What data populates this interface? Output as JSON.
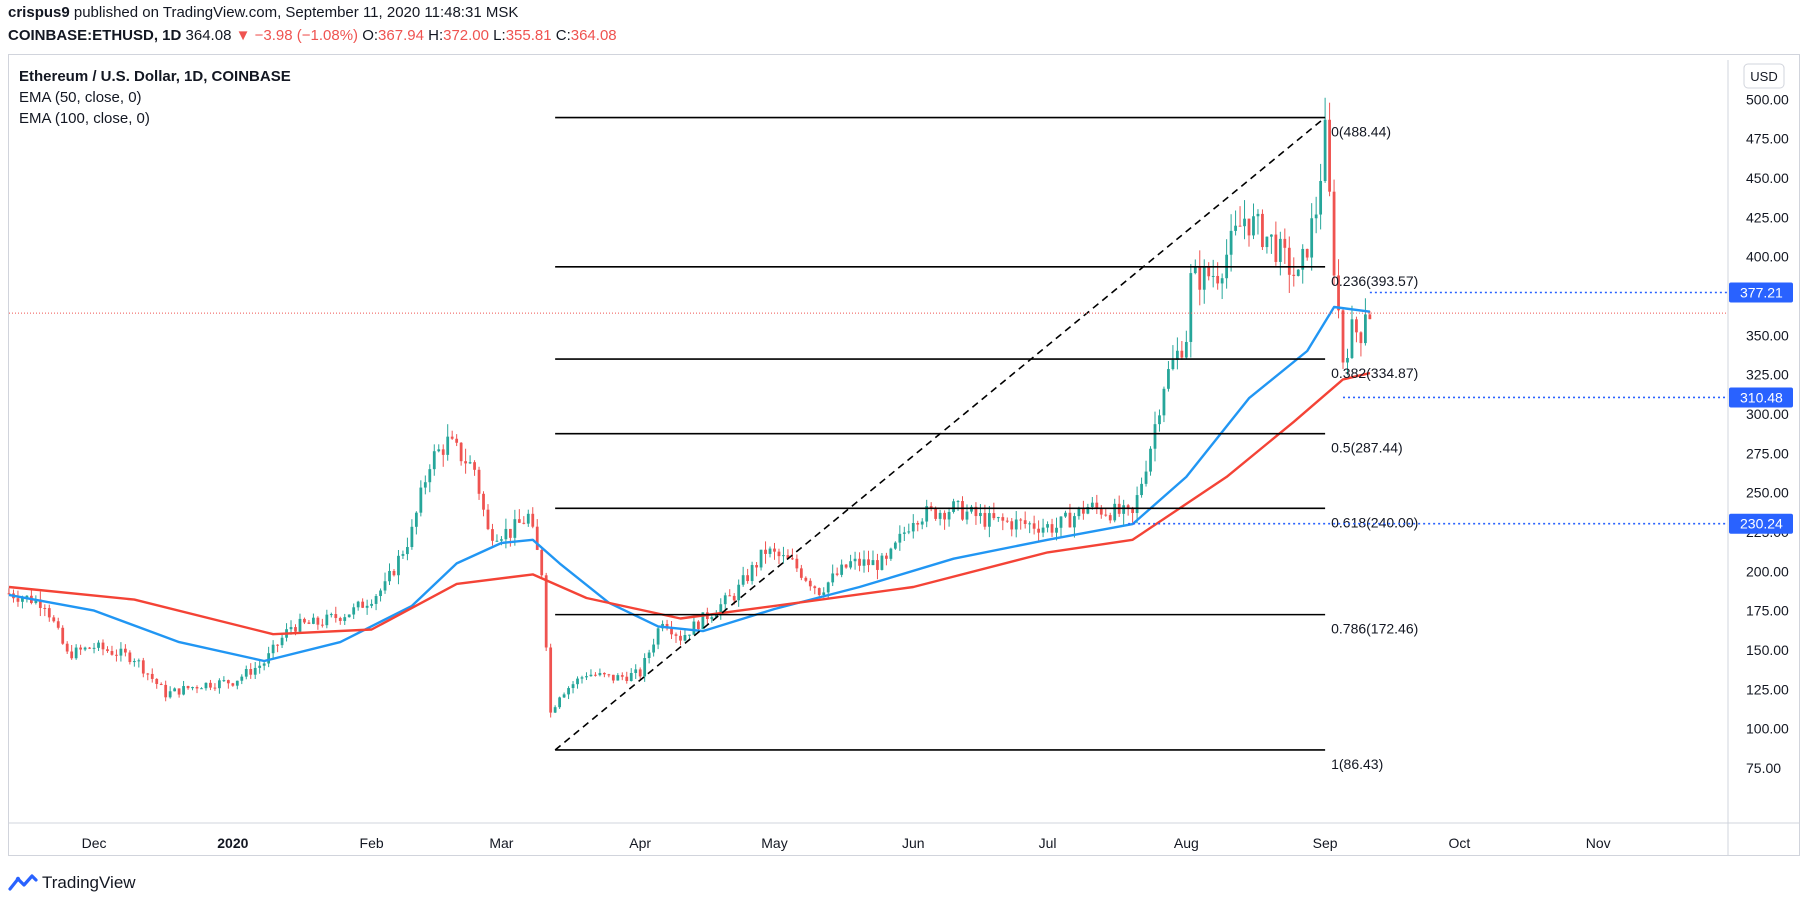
{
  "header": {
    "user": "crispus9",
    "published": "published on TradingView.com, September 11, 2020 11:48:31 MSK",
    "symbol": "COINBASE:ETHUSD, 1D",
    "last": "364.08",
    "change": "−3.98 (−1.08%)",
    "o_label": "O:",
    "o": "367.94",
    "h_label": "H:",
    "h": "372.00",
    "l_label": "L:",
    "l": "355.81",
    "c_label": "C:",
    "c": "364.08"
  },
  "legend": [
    "Ethereum / U.S. Dollar, 1D, COINBASE",
    "EMA (50, close, 0)",
    "EMA (100, close, 0)"
  ],
  "currency_button": "USD",
  "brand": "TradingView",
  "colors": {
    "up": "#26a69a",
    "down": "#ef5350",
    "ema50": "#2196f3",
    "ema100": "#f44336",
    "fib": "#000000",
    "price_line": "#ef5350",
    "badge_blue": "#2962ff",
    "axis_text": "#131722"
  },
  "chart_data": {
    "type": "candlestick",
    "symbol": "ETHUSD",
    "interval": "1D",
    "x_labels": [
      {
        "label": "Dec",
        "date": "2019-12-01"
      },
      {
        "label": "2020",
        "date": "2020-01-01",
        "bold": true
      },
      {
        "label": "Feb",
        "date": "2020-02-01"
      },
      {
        "label": "Mar",
        "date": "2020-03-01"
      },
      {
        "label": "Apr",
        "date": "2020-04-01"
      },
      {
        "label": "May",
        "date": "2020-05-01"
      },
      {
        "label": "Jun",
        "date": "2020-06-01"
      },
      {
        "label": "Jul",
        "date": "2020-07-01"
      },
      {
        "label": "Aug",
        "date": "2020-08-01"
      },
      {
        "label": "Sep",
        "date": "2020-09-01"
      },
      {
        "label": "Oct",
        "date": "2020-10-01"
      },
      {
        "label": "Nov",
        "date": "2020-11-01"
      }
    ],
    "x_range": [
      "2019-11-12",
      "2020-11-30"
    ],
    "y_range": [
      40,
      525
    ],
    "y_ticks": [
      75,
      100,
      125,
      150,
      175,
      200,
      225,
      250,
      275,
      300,
      325,
      350,
      375,
      400,
      425,
      450,
      475,
      500
    ],
    "close_series": [
      [
        "2019-11-12",
        186
      ],
      [
        "2019-11-20",
        180
      ],
      [
        "2019-11-25",
        147
      ],
      [
        "2019-12-01",
        152
      ],
      [
        "2019-12-10",
        145
      ],
      [
        "2019-12-17",
        122
      ],
      [
        "2019-12-25",
        128
      ],
      [
        "2020-01-01",
        130
      ],
      [
        "2020-01-08",
        142
      ],
      [
        "2020-01-14",
        165
      ],
      [
        "2020-01-20",
        167
      ],
      [
        "2020-01-28",
        175
      ],
      [
        "2020-02-04",
        190
      ],
      [
        "2020-02-10",
        225
      ],
      [
        "2020-02-14",
        270
      ],
      [
        "2020-02-18",
        282
      ],
      [
        "2020-02-24",
        265
      ],
      [
        "2020-02-27",
        225
      ],
      [
        "2020-03-03",
        225
      ],
      [
        "2020-03-07",
        235
      ],
      [
        "2020-03-10",
        200
      ],
      [
        "2020-03-12",
        110
      ],
      [
        "2020-03-14",
        122
      ],
      [
        "2020-03-20",
        135
      ],
      [
        "2020-03-26",
        132
      ],
      [
        "2020-04-01",
        135
      ],
      [
        "2020-04-06",
        170
      ],
      [
        "2020-04-10",
        158
      ],
      [
        "2020-04-16",
        172
      ],
      [
        "2020-04-22",
        185
      ],
      [
        "2020-04-29",
        213
      ],
      [
        "2020-05-05",
        205
      ],
      [
        "2020-05-11",
        188
      ],
      [
        "2020-05-18",
        205
      ],
      [
        "2020-05-26",
        205
      ],
      [
        "2020-06-01",
        235
      ],
      [
        "2020-06-10",
        240
      ],
      [
        "2020-06-18",
        232
      ],
      [
        "2020-06-26",
        230
      ],
      [
        "2020-07-03",
        228
      ],
      [
        "2020-07-10",
        241
      ],
      [
        "2020-07-20",
        235
      ],
      [
        "2020-07-24",
        280
      ],
      [
        "2020-07-27",
        320
      ],
      [
        "2020-08-01",
        350
      ],
      [
        "2020-08-02",
        385
      ],
      [
        "2020-08-08",
        390
      ],
      [
        "2020-08-14",
        425
      ],
      [
        "2020-08-20",
        410
      ],
      [
        "2020-08-26",
        385
      ],
      [
        "2020-08-30",
        430
      ],
      [
        "2020-09-01",
        477
      ],
      [
        "2020-09-03",
        395
      ],
      [
        "2020-09-05",
        335
      ],
      [
        "2020-09-07",
        353
      ],
      [
        "2020-09-09",
        352
      ],
      [
        "2020-09-10",
        368
      ],
      [
        "2020-09-11",
        364
      ]
    ],
    "ema50": [
      [
        "2019-11-12",
        185
      ],
      [
        "2019-12-01",
        175
      ],
      [
        "2019-12-20",
        155
      ],
      [
        "2020-01-08",
        143
      ],
      [
        "2020-01-25",
        155
      ],
      [
        "2020-02-10",
        178
      ],
      [
        "2020-02-20",
        205
      ],
      [
        "2020-03-01",
        218
      ],
      [
        "2020-03-08",
        220
      ],
      [
        "2020-03-14",
        205
      ],
      [
        "2020-03-25",
        180
      ],
      [
        "2020-04-05",
        165
      ],
      [
        "2020-04-15",
        162
      ],
      [
        "2020-05-01",
        176
      ],
      [
        "2020-05-20",
        190
      ],
      [
        "2020-06-10",
        208
      ],
      [
        "2020-07-01",
        220
      ],
      [
        "2020-07-20",
        230
      ],
      [
        "2020-08-01",
        260
      ],
      [
        "2020-08-15",
        310
      ],
      [
        "2020-08-28",
        340
      ],
      [
        "2020-09-03",
        368
      ],
      [
        "2020-09-11",
        365
      ]
    ],
    "ema100": [
      [
        "2019-11-12",
        190
      ],
      [
        "2019-12-10",
        182
      ],
      [
        "2020-01-10",
        160
      ],
      [
        "2020-02-01",
        163
      ],
      [
        "2020-02-20",
        192
      ],
      [
        "2020-03-08",
        198
      ],
      [
        "2020-03-20",
        183
      ],
      [
        "2020-04-10",
        170
      ],
      [
        "2020-05-01",
        178
      ],
      [
        "2020-06-01",
        190
      ],
      [
        "2020-07-01",
        212
      ],
      [
        "2020-07-20",
        220
      ],
      [
        "2020-08-10",
        260
      ],
      [
        "2020-08-25",
        295
      ],
      [
        "2020-09-05",
        322
      ],
      [
        "2020-09-11",
        326
      ]
    ],
    "fibonacci": {
      "x_start": "2020-03-13",
      "x_end": "2020-09-01",
      "levels": [
        {
          "ratio": 0,
          "price": 488.44,
          "label": "0(488.44)"
        },
        {
          "ratio": 0.236,
          "price": 393.57,
          "label": "0.236(393.57)"
        },
        {
          "ratio": 0.382,
          "price": 334.87,
          "label": "0.382(334.87)"
        },
        {
          "ratio": 0.5,
          "price": 287.44,
          "label": "0.5(287.44)"
        },
        {
          "ratio": 0.618,
          "price": 240.0,
          "label": "0.618(240.00)"
        },
        {
          "ratio": 0.786,
          "price": 172.46,
          "label": "0.786(172.46)"
        },
        {
          "ratio": 1,
          "price": 86.43,
          "label": "1(86.43)"
        }
      ],
      "trend_line": [
        [
          "2020-03-13",
          86.43
        ],
        [
          "2020-09-01",
          488.44
        ]
      ]
    },
    "horizontal_markers": [
      {
        "price": 377.21,
        "label": "377.21",
        "from": "2020-09-11"
      },
      {
        "price": 310.48,
        "label": "310.48",
        "from": "2020-09-05"
      },
      {
        "price": 230.24,
        "label": "230.24",
        "from": "2020-07-19"
      }
    ],
    "last_price": 364.08
  }
}
